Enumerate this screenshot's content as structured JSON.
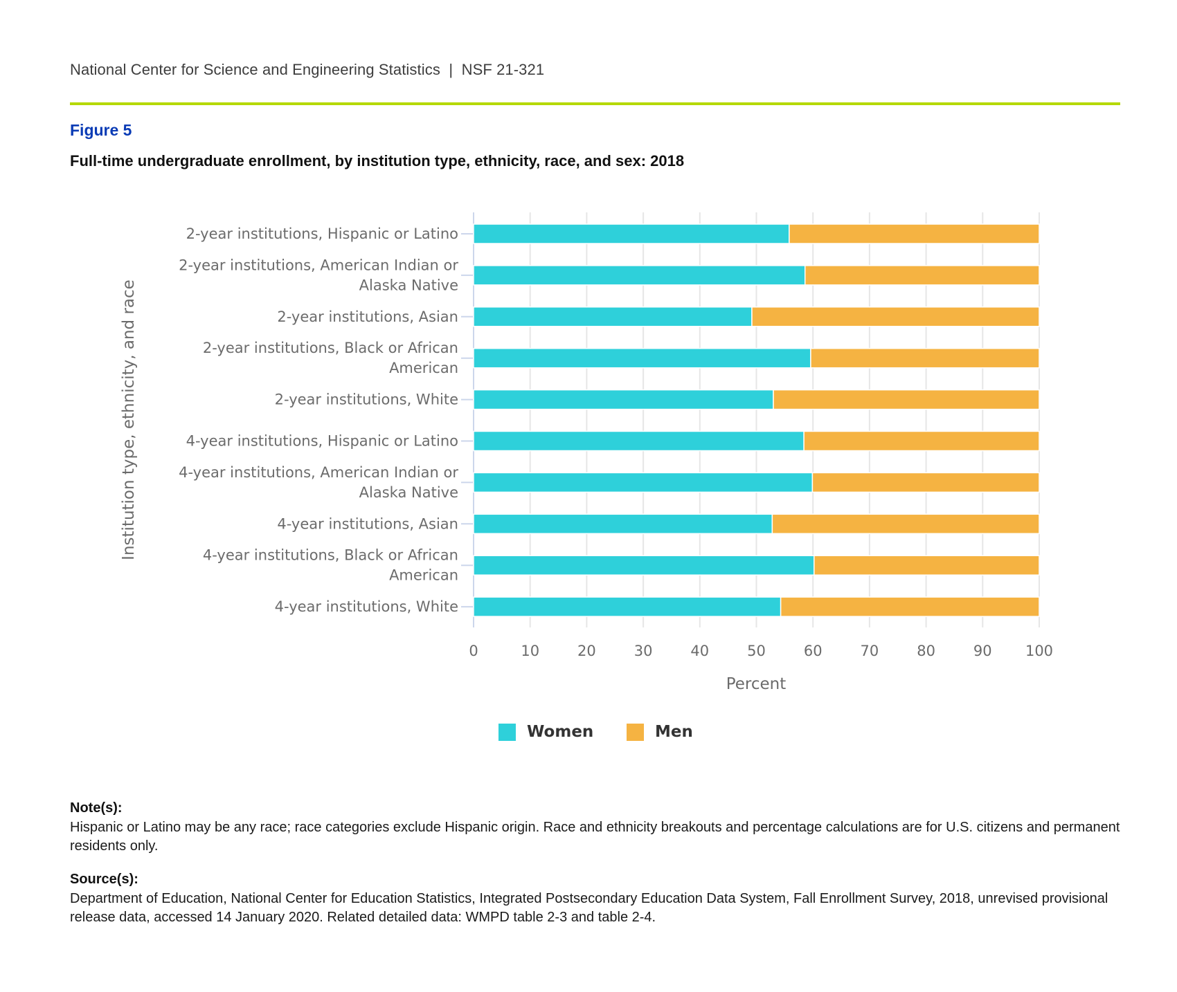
{
  "header": {
    "publisher": "National Center for Science and Engineering Statistics  |  NSF 21-321",
    "accent_color": "#b5d900"
  },
  "figure": {
    "label": "Figure 5",
    "title": "Full-time undergraduate enrollment, by institution type, ethnicity, race, and sex: 2018"
  },
  "chart_data": {
    "type": "bar",
    "orientation": "horizontal",
    "stacked": true,
    "title": "Full-time undergraduate enrollment, by institution type, ethnicity, race, and sex: 2018",
    "xlabel": "Percent",
    "ylabel": "Institution type, ethnicity, and race",
    "xlim": [
      0,
      100
    ],
    "xticks": [
      0,
      10,
      20,
      30,
      40,
      50,
      60,
      70,
      80,
      90,
      100
    ],
    "grid": true,
    "legend_position": "bottom-center",
    "categories": [
      [
        "2-year institutions, Hispanic or Latino"
      ],
      [
        "2-year institutions, American Indian or",
        "Alaska Native"
      ],
      [
        "2-year institutions, Asian"
      ],
      [
        "2-year institutions, Black or African",
        "American"
      ],
      [
        "2-year institutions, White"
      ],
      [
        "4-year institutions, Hispanic or Latino"
      ],
      [
        "4-year institutions, American Indian or",
        "Alaska Native"
      ],
      [
        "4-year institutions, Asian"
      ],
      [
        "4-year institutions, Black or African",
        "American"
      ],
      [
        "4-year institutions, White"
      ]
    ],
    "series": [
      {
        "name": "Women",
        "color": "#2ed0da",
        "values": [
          55.8,
          58.6,
          49.2,
          59.6,
          53.0,
          58.4,
          59.9,
          52.8,
          60.2,
          54.3
        ]
      },
      {
        "name": "Men",
        "color": "#f5b342",
        "values": [
          44.2,
          41.4,
          50.8,
          40.4,
          47.0,
          41.6,
          40.1,
          47.2,
          39.8,
          45.7
        ]
      }
    ]
  },
  "notes": {
    "heading": "Note(s):",
    "text": "Hispanic or Latino may be any race; race categories exclude Hispanic origin. Race and ethnicity breakouts and percentage calculations are for U.S. citizens and permanent residents only."
  },
  "sources": {
    "heading": "Source(s):",
    "text": "Department of Education, National Center for Education Statistics, Integrated Postsecondary Education Data System, Fall Enrollment Survey, 2018, unrevised provisional release data, accessed 14 January 2020. Related detailed data: WMPD table 2-3 and table 2-4."
  }
}
